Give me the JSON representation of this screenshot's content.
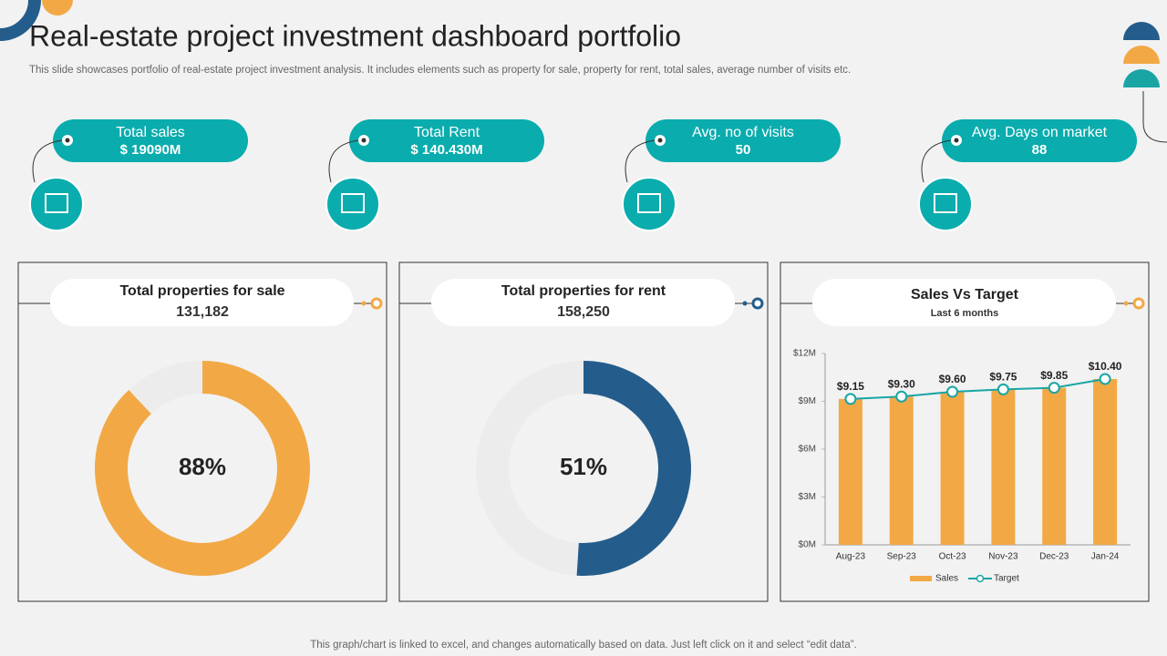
{
  "header": {
    "title": "Real-estate project investment dashboard portfolio",
    "subtitle": "This slide showcases portfolio of real-estate project investment analysis. It includes elements such as property for sale, property for rent, total sales, average number of visits etc."
  },
  "kpis": [
    {
      "label": "Total sales",
      "value": "$ 19090M"
    },
    {
      "label": "Total Rent",
      "value": "$ 140.430M"
    },
    {
      "label": "Avg. no of visits",
      "value": "50"
    },
    {
      "label": "Avg. Days on market",
      "value": "88"
    }
  ],
  "chart_data": [
    {
      "type": "donut",
      "title": "Total properties for sale",
      "subtitle": "131,182",
      "values": [
        88
      ],
      "value_labels": [
        "88%"
      ],
      "color": "#f2a945",
      "track_color": "#ececec"
    },
    {
      "type": "donut",
      "title": "Total properties for rent",
      "subtitle": "158,250",
      "values": [
        51
      ],
      "value_labels": [
        "51%"
      ],
      "color": "#245d8c",
      "track_color": "#ececec"
    },
    {
      "type": "combo",
      "title": "Sales Vs Target",
      "subtitle": "Last 6 months",
      "categories": [
        "Aug-23",
        "Sep-23",
        "Oct-23",
        "Nov-23",
        "Dec-23",
        "Jan-24"
      ],
      "series": [
        {
          "name": "Sales",
          "type": "bar",
          "color": "#f2a945",
          "values": [
            9.15,
            9.3,
            9.6,
            9.75,
            9.85,
            10.4
          ],
          "value_labels": [
            "$9.15",
            "$9.30",
            "$9.60",
            "$9.75",
            "$9.85",
            "$10.40"
          ]
        },
        {
          "name": "Target",
          "type": "line",
          "color": "#1aa5a5",
          "values": [
            9.15,
            9.3,
            9.6,
            9.75,
            9.85,
            10.4
          ]
        }
      ],
      "ylim": [
        0,
        12
      ],
      "yticks": [
        {
          "value": 0,
          "label": "$0M"
        },
        {
          "value": 3,
          "label": "$3M"
        },
        {
          "value": 6,
          "label": "$6M"
        },
        {
          "value": 9,
          "label": "$9M"
        },
        {
          "value": 12,
          "label": "$12M"
        }
      ],
      "grid": false
    }
  ],
  "footer": "This graph/chart is linked to excel, and changes automatically based on data. Just left click on it and select “edit data”."
}
